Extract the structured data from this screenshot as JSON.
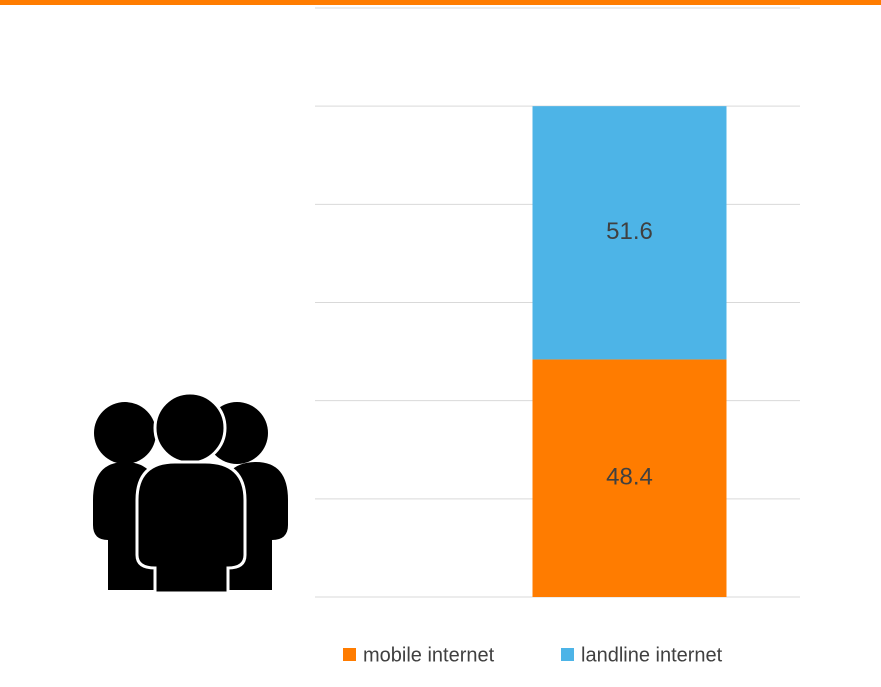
{
  "chart_data": {
    "type": "stacked_bar",
    "categories": [
      null
    ],
    "series": [
      {
        "name": "mobile internet",
        "color": "#ff7c00",
        "values": [
          48.4
        ]
      },
      {
        "name": "landline internet",
        "color": "#4db4e7",
        "values": [
          51.6
        ]
      }
    ],
    "ylim": [
      0,
      120
    ],
    "yticks": [
      0,
      20,
      40,
      60,
      80,
      100,
      120
    ],
    "grid": true,
    "legend": "bottom"
  }
}
